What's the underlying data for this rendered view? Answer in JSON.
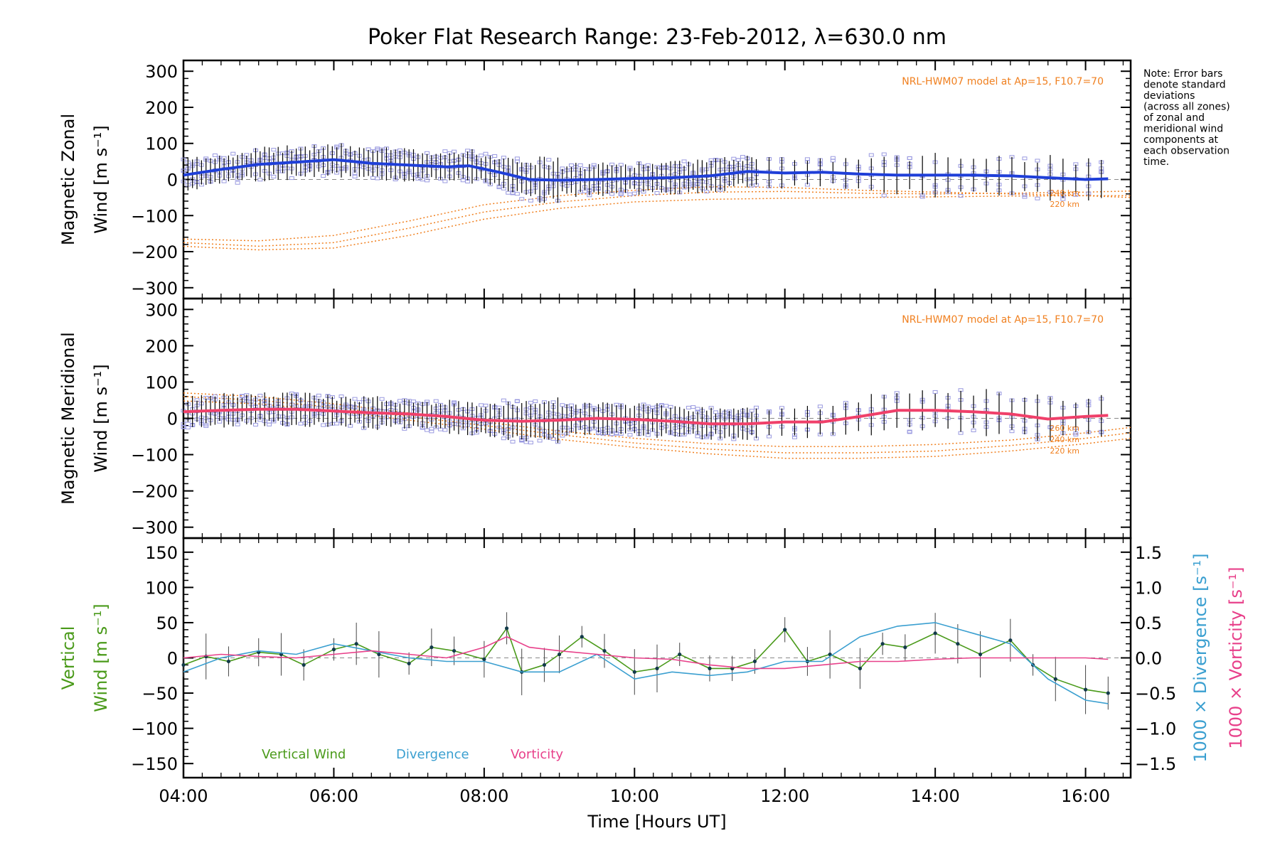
{
  "title": "Poker Flat Research Range: 23-Feb-2012, λ=630.0 nm",
  "note_lines": [
    "Note: Error bars",
    "denote standard",
    "deviations",
    "(across all zones)",
    "of zonal and",
    "meridional wind",
    "components at",
    "each observation",
    "time."
  ],
  "colors": {
    "zonal": "#1f3fd8",
    "meridional": "#f0406a",
    "vertical": "#4a9a1a",
    "divergence": "#3a9fd0",
    "vorticity": "#e8408a",
    "model": "#f08020",
    "scatter": "#9a9ae0",
    "errorbar": "#000000"
  },
  "x_axis": {
    "label": "Time [Hours UT]",
    "range": [
      4.0,
      16.6
    ],
    "tick_labels": [
      "04:00",
      "06:00",
      "08:00",
      "10:00",
      "12:00",
      "14:00",
      "16:00"
    ],
    "tick_values": [
      4,
      6,
      8,
      10,
      12,
      14,
      16
    ]
  },
  "chart_data": [
    {
      "type": "line",
      "panel": "zonal",
      "ylabel_line1": "Magnetic Zonal",
      "ylabel_line2": "Wind [m s⁻¹]",
      "ylim": [
        -330,
        330
      ],
      "y_tick_labels": [
        "300",
        "200",
        "100",
        "0",
        "−100",
        "−200",
        "−300"
      ],
      "y_tick_values": [
        300,
        200,
        100,
        0,
        -100,
        -200,
        -300
      ],
      "model_label": "NRL-HWM07 model at Ap=15, F10.7=70",
      "model_alt_labels": [
        "240 km",
        "220 km"
      ],
      "series": [
        {
          "x": [
            4.0,
            4.5,
            5.0,
            5.5,
            6.0,
            6.5,
            7.0,
            7.5,
            7.8,
            8.2,
            8.6,
            9.0,
            9.5,
            10.0,
            10.5,
            11.0,
            11.5,
            12.0,
            12.5,
            13.0,
            13.5,
            14.0,
            14.5,
            15.0,
            15.5,
            16.0,
            16.3
          ],
          "y": [
            12,
            28,
            42,
            48,
            55,
            45,
            40,
            35,
            38,
            20,
            0,
            -2,
            0,
            3,
            5,
            10,
            22,
            18,
            20,
            15,
            12,
            12,
            12,
            10,
            5,
            0,
            2
          ]
        }
      ],
      "model_curves": [
        {
          "x": [
            4.0,
            5.0,
            6.0,
            7.0,
            8.0,
            9.0,
            10.0,
            11.0,
            12.0,
            13.0,
            14.0,
            15.0,
            16.0,
            16.6
          ],
          "y": [
            -165,
            -170,
            -155,
            -115,
            -70,
            -45,
            -30,
            -20,
            -22,
            -30,
            -35,
            -40,
            -45,
            -50
          ]
        },
        {
          "x": [
            4.0,
            5.0,
            6.0,
            7.0,
            8.0,
            9.0,
            10.0,
            11.0,
            12.0,
            13.0,
            14.0,
            15.0,
            16.0,
            16.6
          ],
          "y": [
            -175,
            -185,
            -175,
            -135,
            -90,
            -62,
            -45,
            -35,
            -33,
            -38,
            -40,
            -38,
            -35,
            -32
          ]
        },
        {
          "x": [
            4.0,
            5.0,
            6.0,
            7.0,
            8.0,
            9.0,
            10.0,
            11.0,
            12.0,
            13.0,
            14.0,
            15.0,
            16.0,
            16.6
          ],
          "y": [
            -185,
            -195,
            -190,
            -155,
            -110,
            -80,
            -62,
            -55,
            -52,
            -50,
            -48,
            -46,
            -45,
            -45
          ]
        }
      ]
    },
    {
      "type": "line",
      "panel": "meridional",
      "ylabel_line1": "Magnetic Meridional",
      "ylabel_line2": "Wind [m s⁻¹]",
      "ylim": [
        -330,
        330
      ],
      "y_tick_labels": [
        "300",
        "200",
        "100",
        "0",
        "−100",
        "−200",
        "−300"
      ],
      "y_tick_values": [
        300,
        200,
        100,
        0,
        -100,
        -200,
        -300
      ],
      "model_label": "NRL-HWM07 model at Ap=15, F10.7=70",
      "model_alt_labels": [
        "260 km",
        "240 km",
        "220 km"
      ],
      "series": [
        {
          "x": [
            4.0,
            4.5,
            5.0,
            5.5,
            6.0,
            6.5,
            7.0,
            7.5,
            8.0,
            8.5,
            9.0,
            9.5,
            10.0,
            10.5,
            11.0,
            11.5,
            12.0,
            12.5,
            13.0,
            13.5,
            14.0,
            14.5,
            15.0,
            15.5,
            16.0,
            16.3
          ],
          "y": [
            18,
            22,
            25,
            25,
            20,
            15,
            12,
            5,
            -5,
            -8,
            -5,
            0,
            -3,
            -8,
            -15,
            -15,
            -10,
            -10,
            5,
            22,
            22,
            18,
            12,
            -2,
            5,
            8
          ]
        }
      ],
      "model_curves": [
        {
          "x": [
            4.0,
            5.0,
            6.0,
            7.0,
            8.0,
            9.0,
            10.0,
            11.0,
            12.0,
            13.0,
            14.0,
            15.0,
            16.0,
            16.6
          ],
          "y": [
            70,
            60,
            40,
            15,
            -10,
            -35,
            -55,
            -70,
            -78,
            -78,
            -72,
            -60,
            -40,
            -25
          ]
        },
        {
          "x": [
            4.0,
            5.0,
            6.0,
            7.0,
            8.0,
            9.0,
            10.0,
            11.0,
            12.0,
            13.0,
            14.0,
            15.0,
            16.0,
            16.6
          ],
          "y": [
            60,
            50,
            30,
            5,
            -20,
            -45,
            -68,
            -85,
            -95,
            -95,
            -90,
            -75,
            -55,
            -40
          ]
        },
        {
          "x": [
            4.0,
            5.0,
            6.0,
            7.0,
            8.0,
            9.0,
            10.0,
            11.0,
            12.0,
            13.0,
            14.0,
            15.0,
            16.0,
            16.6
          ],
          "y": [
            48,
            40,
            20,
            -5,
            -30,
            -58,
            -80,
            -98,
            -110,
            -110,
            -105,
            -90,
            -70,
            -55
          ]
        }
      ]
    },
    {
      "type": "line",
      "panel": "vertical",
      "ylabel_line1": "Vertical",
      "ylabel_line2": "Wind [m s⁻¹]",
      "ylim": [
        -170,
        170
      ],
      "y_tick_labels": [
        "150",
        "100",
        "50",
        "0",
        "−50",
        "−100",
        "−150"
      ],
      "y_tick_values": [
        150,
        100,
        50,
        0,
        -50,
        -100,
        -150
      ],
      "y2_tick_labels": [
        "1.5",
        "1.0",
        "0.5",
        "0.0",
        "−0.5",
        "−1.0",
        "−1.5"
      ],
      "y2_tick_values": [
        1.5,
        1.0,
        0.5,
        0.0,
        -0.5,
        -1.0,
        -1.5
      ],
      "y2_label_divergence": "1000 × Divergence [s⁻¹]",
      "y2_label_vorticity": "1000 × Vorticity [s⁻¹]",
      "legend": [
        "Vertical Wind",
        "Divergence",
        "Vorticity"
      ],
      "series": [
        {
          "name": "Vertical Wind",
          "x": [
            4.0,
            4.3,
            4.6,
            5.0,
            5.3,
            5.6,
            6.0,
            6.3,
            6.6,
            7.0,
            7.3,
            7.6,
            8.0,
            8.3,
            8.5,
            8.8,
            9.0,
            9.3,
            9.6,
            10.0,
            10.3,
            10.6,
            11.0,
            11.3,
            11.6,
            12.0,
            12.3,
            12.6,
            13.0,
            13.3,
            13.6,
            14.0,
            14.3,
            14.6,
            15.0,
            15.3,
            15.6,
            16.0,
            16.3
          ],
          "y": [
            -10,
            2,
            -5,
            8,
            5,
            -10,
            12,
            20,
            5,
            -8,
            15,
            10,
            -2,
            42,
            -20,
            -10,
            5,
            30,
            10,
            -20,
            -15,
            5,
            -15,
            -15,
            -5,
            40,
            -5,
            5,
            -15,
            20,
            15,
            35,
            20,
            5,
            25,
            -10,
            -30,
            -45,
            -50
          ]
        },
        {
          "name": "Divergence",
          "x": [
            4.0,
            4.5,
            5.0,
            5.5,
            6.0,
            6.5,
            7.0,
            7.5,
            8.0,
            8.5,
            9.0,
            9.5,
            10.0,
            10.5,
            11.0,
            11.5,
            12.0,
            12.5,
            13.0,
            13.5,
            14.0,
            14.5,
            15.0,
            15.5,
            16.0,
            16.3
          ],
          "y": [
            -0.2,
            0.0,
            0.1,
            0.05,
            0.2,
            0.1,
            0.0,
            -0.05,
            -0.05,
            -0.2,
            -0.2,
            0.05,
            -0.3,
            -0.2,
            -0.25,
            -0.2,
            -0.05,
            -0.05,
            0.3,
            0.45,
            0.5,
            0.35,
            0.2,
            -0.3,
            -0.6,
            -0.65
          ]
        },
        {
          "name": "Vorticity",
          "x": [
            4.0,
            4.5,
            5.0,
            5.5,
            6.0,
            6.5,
            7.0,
            7.5,
            8.0,
            8.3,
            8.6,
            9.0,
            9.5,
            10.0,
            10.5,
            11.0,
            11.5,
            12.0,
            12.5,
            13.0,
            13.5,
            14.0,
            14.5,
            15.0,
            15.5,
            16.0,
            16.3
          ],
          "y": [
            0.0,
            0.05,
            0.02,
            0.0,
            0.05,
            0.1,
            0.05,
            0.0,
            0.15,
            0.3,
            0.15,
            0.1,
            0.05,
            0.0,
            -0.02,
            -0.1,
            -0.15,
            -0.15,
            -0.1,
            -0.05,
            -0.05,
            -0.02,
            0.0,
            0.0,
            0.0,
            0.0,
            -0.02
          ]
        }
      ]
    }
  ]
}
